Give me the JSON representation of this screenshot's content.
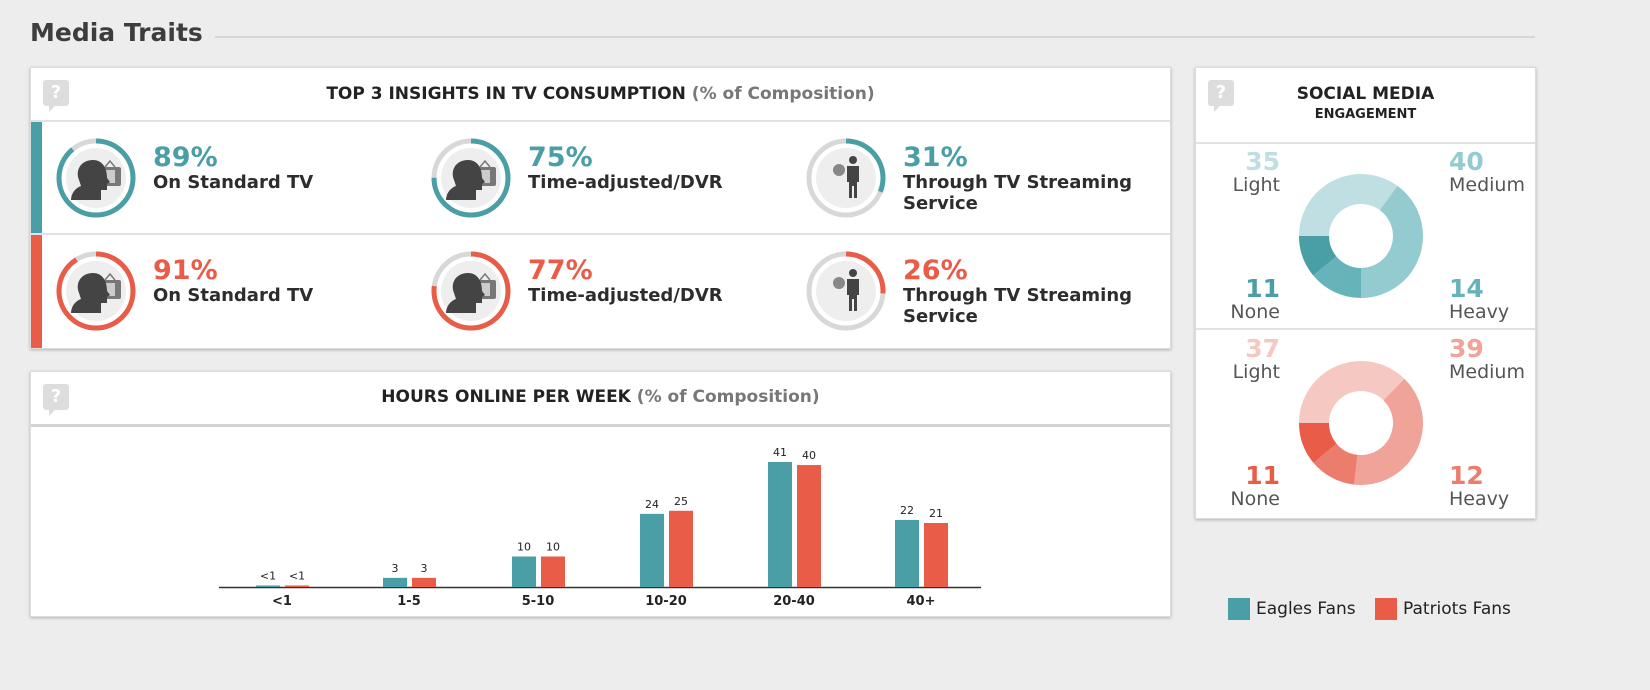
{
  "section_title": "Media Traits",
  "colors": {
    "eagles": "#4a9ea5",
    "patriots": "#e85c48"
  },
  "tv_panel": {
    "title": "TOP 3 INSIGHTS IN TV CONSUMPTION",
    "subtitle": "(% of Composition)",
    "help_icon": "?",
    "rows": [
      {
        "team": "eagles",
        "items": [
          {
            "value": 89,
            "pct": "89%",
            "label": "On Standard TV",
            "icon": "person-tv-icon"
          },
          {
            "value": 75,
            "pct": "75%",
            "label": "Time-adjusted/DVR",
            "icon": "person-tv-icon"
          },
          {
            "value": 31,
            "pct": "31%",
            "label": "Through TV Streaming Service",
            "icon": "person-remote-icon"
          }
        ]
      },
      {
        "team": "patriots",
        "items": [
          {
            "value": 91,
            "pct": "91%",
            "label": "On Standard TV",
            "icon": "person-tv-icon"
          },
          {
            "value": 77,
            "pct": "77%",
            "label": "Time-adjusted/DVR",
            "icon": "person-tv-icon"
          },
          {
            "value": 26,
            "pct": "26%",
            "label": "Through TV Streaming Service",
            "icon": "person-remote-icon"
          }
        ]
      }
    ]
  },
  "hours_panel": {
    "title": "HOURS ONLINE PER WEEK",
    "subtitle": "(% of Composition)",
    "help_icon": "?"
  },
  "chart_data": {
    "type": "bar",
    "categories": [
      "<1",
      "1-5",
      "5-10",
      "10-20",
      "20-40",
      "40+"
    ],
    "series": [
      {
        "name": "Eagles Fans",
        "values": [
          0.5,
          3,
          10,
          24,
          41,
          22
        ],
        "labels": [
          "<1",
          "3",
          "10",
          "24",
          "41",
          "22"
        ]
      },
      {
        "name": "Patriots Fans",
        "values": [
          0.5,
          3,
          10,
          25,
          40,
          21
        ],
        "labels": [
          "<1",
          "3",
          "10",
          "25",
          "40",
          "21"
        ]
      }
    ],
    "ylim": [
      0,
      41
    ]
  },
  "social_panel": {
    "title": "SOCIAL MEDIA",
    "subtitle": "ENGAGEMENT",
    "help_icon": "?",
    "groups": [
      {
        "team": "eagles",
        "segments": [
          {
            "label": "Light",
            "value": 35,
            "color": "#bfdfe3"
          },
          {
            "label": "Medium",
            "value": 40,
            "color": "#93cbd0"
          },
          {
            "label": "Heavy",
            "value": 14,
            "color": "#66b3b9"
          },
          {
            "label": "None",
            "value": 11,
            "color": "#4a9ea5"
          }
        ]
      },
      {
        "team": "patriots",
        "segments": [
          {
            "label": "Light",
            "value": 37,
            "color": "#f5c9c2"
          },
          {
            "label": "Medium",
            "value": 39,
            "color": "#f0a398"
          },
          {
            "label": "Heavy",
            "value": 12,
            "color": "#ec7d6d"
          },
          {
            "label": "None",
            "value": 11,
            "color": "#e85c48"
          }
        ]
      }
    ]
  },
  "legend": [
    {
      "label": "Eagles Fans",
      "color": "#4a9ea5"
    },
    {
      "label": "Patriots Fans",
      "color": "#e85c48"
    }
  ]
}
